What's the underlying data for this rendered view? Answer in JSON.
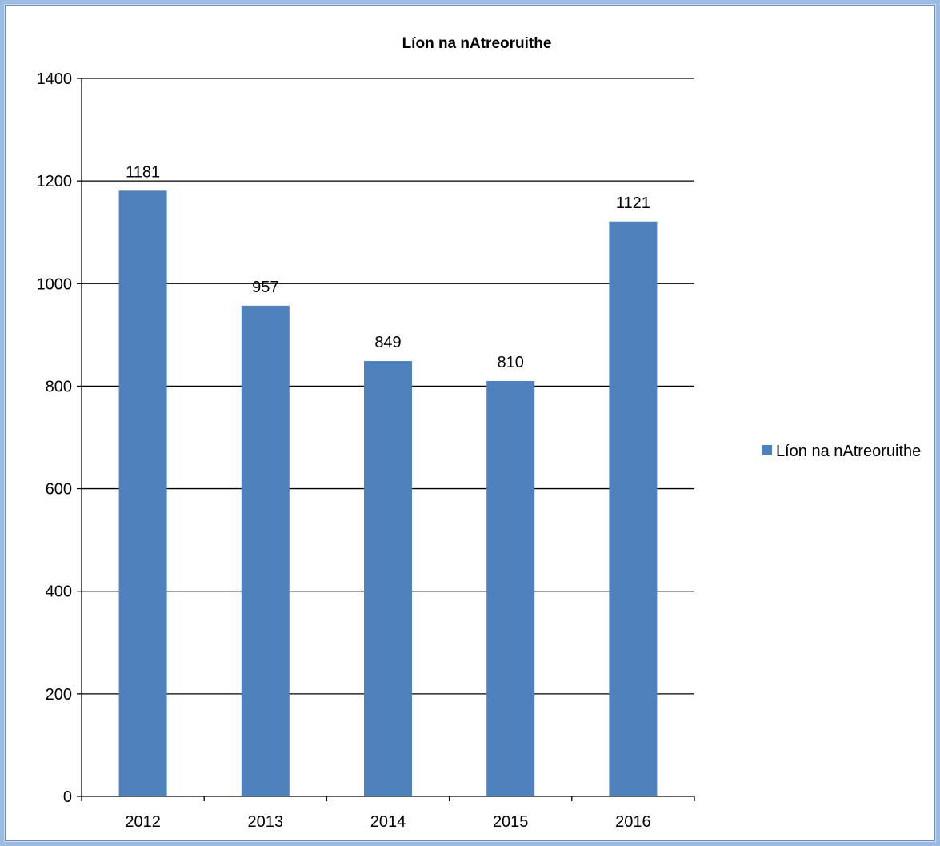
{
  "chart_data": {
    "type": "bar",
    "title": "Líon na nAtreoruithe",
    "xlabel": "",
    "ylabel": "",
    "categories": [
      "2012",
      "2013",
      "2014",
      "2015",
      "2016"
    ],
    "series": [
      {
        "name": "Líon na nAtreoruithe",
        "values": [
          1181,
          957,
          849,
          810,
          1121
        ],
        "color": "#4f81bd"
      }
    ],
    "data_labels": [
      "1181",
      "957",
      "849",
      "810",
      "1121"
    ],
    "ylim": [
      0,
      1400
    ],
    "yticks": [
      0,
      200,
      400,
      600,
      800,
      1000,
      1200,
      1400
    ],
    "ytick_labels": [
      "0",
      "200",
      "400",
      "600",
      "800",
      "1000",
      "1200",
      "1400"
    ],
    "grid": true,
    "legend_position": "right"
  }
}
